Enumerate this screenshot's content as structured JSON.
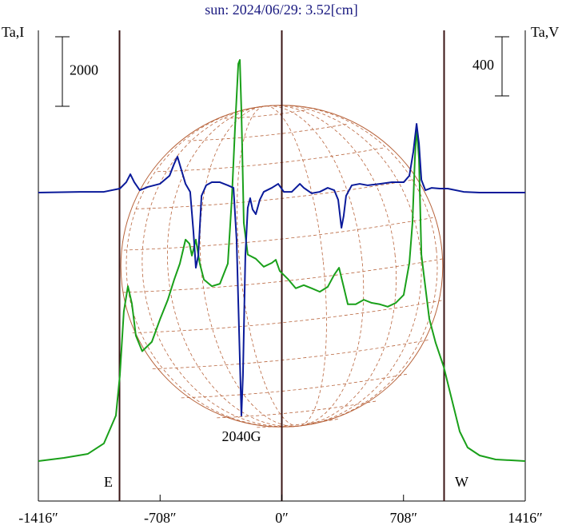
{
  "chart_data": {
    "type": "line",
    "title": "sun: 2024/06/29: 3.52[cm]",
    "y_label": "Ta,I",
    "y2_label": "Ta,V",
    "xlim": [
      -1416,
      1416
    ],
    "xticks": [
      {
        "value": -1416,
        "label": "-1416″"
      },
      {
        "value": -708,
        "label": "-708″"
      },
      {
        "value": 0,
        "label": "0″"
      },
      {
        "value": 708,
        "label": "708″"
      },
      {
        "value": 1416,
        "label": "1416″"
      }
    ],
    "ylim": [
      -1150,
      12390
    ],
    "y2lim": [
      -2086,
      1097
    ],
    "scale_bars": [
      {
        "value": 2000,
        "axis": "y"
      },
      {
        "value": 400,
        "axis": "y2"
      }
    ],
    "vlines": [
      -944,
      0,
      944
    ],
    "limb_labels": [
      {
        "x": -944,
        "label": "E"
      },
      {
        "x": 944,
        "label": "W"
      }
    ],
    "disk_radius": 936,
    "annotation": {
      "text": "2040G",
      "x": -235
    },
    "series": [
      {
        "name": "I",
        "color": "#1aa01a",
        "x": [
          -1416,
          -1267,
          -1128,
          -1035,
          -965,
          -942,
          -919,
          -895,
          -872,
          -849,
          -812,
          -756,
          -709,
          -663,
          -626,
          -593,
          -560,
          -537,
          -523,
          -500,
          -477,
          -453,
          -407,
          -360,
          -314,
          -291,
          -272,
          -253,
          -244,
          -235,
          -221,
          -198,
          -151,
          -105,
          -58,
          -35,
          -12,
          35,
          81,
          128,
          174,
          221,
          267,
          305,
          333,
          360,
          384,
          430,
          477,
          523,
          570,
          616,
          663,
          709,
          742,
          760,
          774,
          784,
          798,
          812,
          835,
          858,
          895,
          942,
          988,
          1035,
          1081,
          1151,
          1244,
          1416
        ],
        "values": [
          0,
          92,
          207,
          506,
          1310,
          2460,
          4300,
          5030,
          4530,
          3610,
          3160,
          3430,
          4070,
          4640,
          5220,
          5680,
          6370,
          6250,
          5910,
          6370,
          5680,
          5220,
          5030,
          5100,
          5680,
          7520,
          9590,
          11430,
          11540,
          10070,
          6850,
          5940,
          5820,
          5590,
          5700,
          5790,
          5470,
          5240,
          4970,
          5060,
          4970,
          4870,
          5010,
          5360,
          5560,
          5010,
          4510,
          4510,
          4640,
          4550,
          4510,
          4440,
          4550,
          4780,
          5700,
          6850,
          8690,
          9610,
          8690,
          5930,
          5010,
          4090,
          3400,
          2710,
          1790,
          850,
          390,
          160,
          46,
          0
        ]
      },
      {
        "name": "V",
        "color": "#0a1a9a",
        "axis": "y2",
        "x": [
          -1416,
          -1174,
          -1035,
          -942,
          -905,
          -881,
          -858,
          -826,
          -779,
          -709,
          -653,
          -626,
          -607,
          -588,
          -560,
          -533,
          -514,
          -500,
          -486,
          -467,
          -440,
          -407,
          -360,
          -314,
          -281,
          -263,
          -244,
          -235,
          -226,
          -212,
          -198,
          -184,
          -170,
          -151,
          -128,
          -105,
          -58,
          -21,
          12,
          58,
          105,
          128,
          174,
          221,
          267,
          305,
          328,
          347,
          360,
          374,
          407,
          453,
          500,
          570,
          640,
          709,
          742,
          765,
          784,
          798,
          812,
          835,
          872,
          919,
          965,
          1058,
          1151,
          1416
        ],
        "values": [
          0,
          5,
          5,
          27,
          70,
          124,
          70,
          16,
          38,
          59,
          114,
          195,
          243,
          168,
          59,
          5,
          -265,
          -508,
          -427,
          -22,
          49,
          70,
          70,
          49,
          32,
          -319,
          -1130,
          -1508,
          -1238,
          -427,
          -103,
          -38,
          -114,
          -146,
          -49,
          5,
          32,
          59,
          5,
          5,
          59,
          32,
          -5,
          5,
          32,
          16,
          -49,
          -238,
          -157,
          -22,
          49,
          59,
          49,
          59,
          70,
          70,
          114,
          276,
          465,
          330,
          86,
          16,
          32,
          27,
          27,
          5,
          0,
          0
        ]
      }
    ]
  }
}
